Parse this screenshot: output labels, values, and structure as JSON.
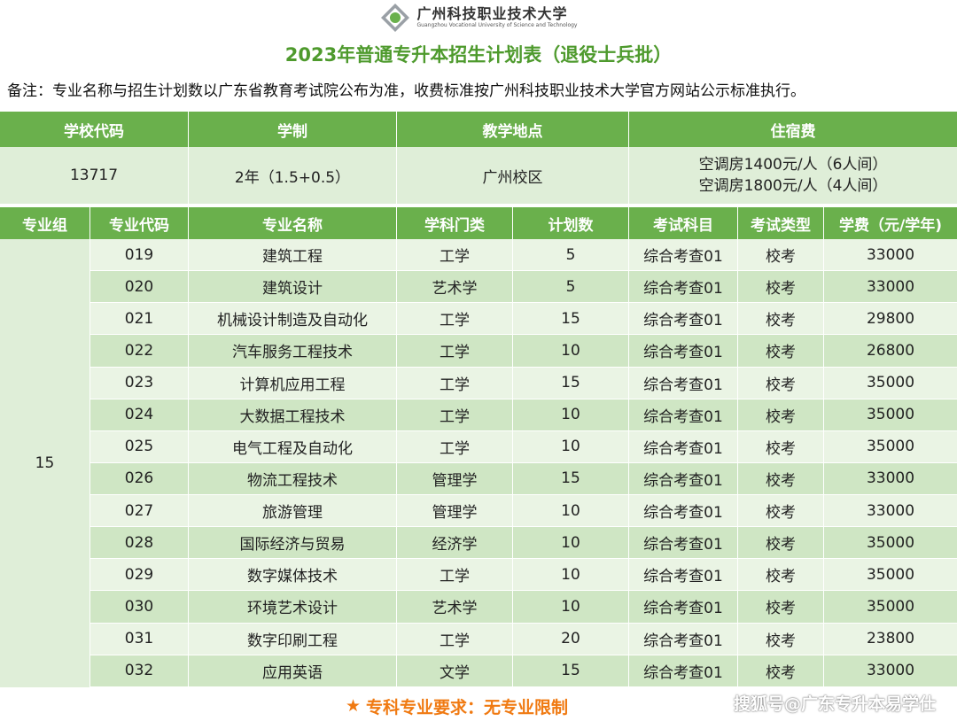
{
  "logo": {
    "name_cn": "广州科技职业技术大学",
    "name_en": "Guangzhou Vocational University of Science and Technology"
  },
  "title": "2023年普通专升本招生计划表（退役士兵批）",
  "note": "备注：专业名称与招生计划数以广东省教育考试院公布为准，收费标准按广州科技职业技术大学官方网站公示标准执行。",
  "school_header": {
    "code": "学校代码",
    "duration": "学制",
    "location": "教学地点",
    "dorm": "住宿费"
  },
  "school_info": {
    "code": "13717",
    "duration": "2年（1.5+0.5）",
    "location": "广州校区",
    "dorm_line1": "空调房1400元/人（6人间）",
    "dorm_line2": "空调房1800元/人（4人间）"
  },
  "table_header": {
    "group": "专业组",
    "major_code": "专业代码",
    "major_name": "专业名称",
    "category": "学科门类",
    "plan": "计划数",
    "exam_subject": "考试科目",
    "exam_type": "考试类型",
    "tuition": "学费（元/学年)"
  },
  "group_number": "15",
  "rows": [
    {
      "code": "019",
      "name": "建筑工程",
      "category": "工学",
      "plan": "5",
      "subject": "综合考查01",
      "type": "校考",
      "fee": "33000"
    },
    {
      "code": "020",
      "name": "建筑设计",
      "category": "艺术学",
      "plan": "5",
      "subject": "综合考查01",
      "type": "校考",
      "fee": "33000"
    },
    {
      "code": "021",
      "name": "机械设计制造及自动化",
      "category": "工学",
      "plan": "15",
      "subject": "综合考查01",
      "type": "校考",
      "fee": "29800"
    },
    {
      "code": "022",
      "name": "汽车服务工程技术",
      "category": "工学",
      "plan": "10",
      "subject": "综合考查01",
      "type": "校考",
      "fee": "26800"
    },
    {
      "code": "023",
      "name": "计算机应用工程",
      "category": "工学",
      "plan": "15",
      "subject": "综合考查01",
      "type": "校考",
      "fee": "35000"
    },
    {
      "code": "024",
      "name": "大数据工程技术",
      "category": "工学",
      "plan": "10",
      "subject": "综合考查01",
      "type": "校考",
      "fee": "35000"
    },
    {
      "code": "025",
      "name": "电气工程及自动化",
      "category": "工学",
      "plan": "10",
      "subject": "综合考查01",
      "type": "校考",
      "fee": "35000"
    },
    {
      "code": "026",
      "name": "物流工程技术",
      "category": "管理学",
      "plan": "15",
      "subject": "综合考查01",
      "type": "校考",
      "fee": "33000"
    },
    {
      "code": "027",
      "name": "旅游管理",
      "category": "管理学",
      "plan": "10",
      "subject": "综合考查01",
      "type": "校考",
      "fee": "33000"
    },
    {
      "code": "028",
      "name": "国际经济与贸易",
      "category": "经济学",
      "plan": "10",
      "subject": "综合考查01",
      "type": "校考",
      "fee": "35000"
    },
    {
      "code": "029",
      "name": "数字媒体技术",
      "category": "工学",
      "plan": "10",
      "subject": "综合考查01",
      "type": "校考",
      "fee": "35000"
    },
    {
      "code": "030",
      "name": "环境艺术设计",
      "category": "艺术学",
      "plan": "10",
      "subject": "综合考查01",
      "type": "校考",
      "fee": "35000"
    },
    {
      "code": "031",
      "name": "数字印刷工程",
      "category": "工学",
      "plan": "20",
      "subject": "综合考查01",
      "type": "校考",
      "fee": "23800"
    },
    {
      "code": "032",
      "name": "应用英语",
      "category": "文学",
      "plan": "15",
      "subject": "综合考查01",
      "type": "校考",
      "fee": "33000"
    }
  ],
  "footer": {
    "star": "★",
    "requirement": "专科专业要求：无专业限制",
    "watermark": "搜狐号@广东专升本易学仕"
  },
  "colors": {
    "header_green": "#6ab04c",
    "title_green": "#4e9a2d",
    "row_light": "#eaf4e4",
    "row_dark": "#cfe6c4",
    "footer_orange": "#f07a12"
  }
}
